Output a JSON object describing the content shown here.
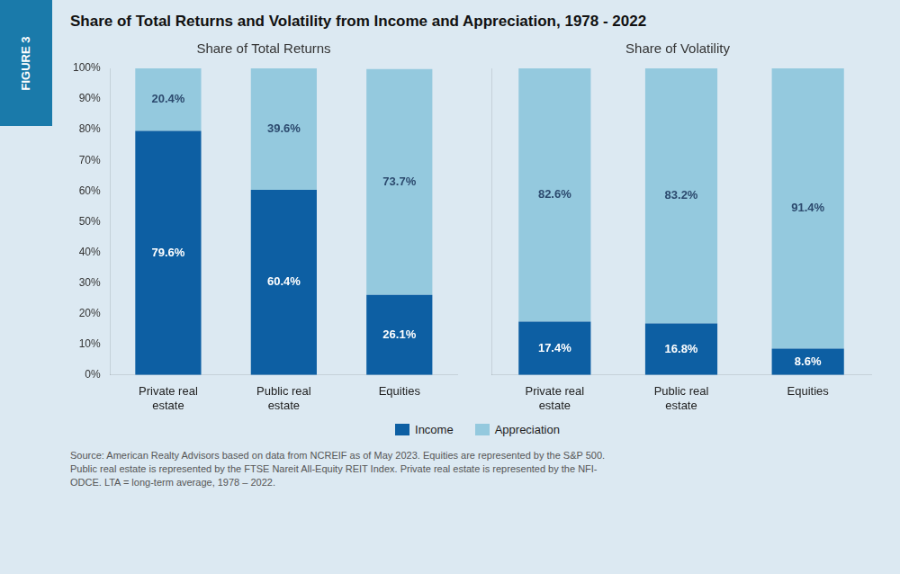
{
  "title": "Share of Total Returns and Volatility from Income and Appreciation, 1978 - 2022",
  "annotations": [
    "FIGURE 3",
    "Source: American Realty Advisors based on data from NCREIF as of May 2023. Equities are represented by the S&P 500.\nPublic real estate is represented by the FTSE Nareit All-Equity REIT Index. Private real estate is represented by the NFI-\nODCE. LTA = long-term average, 1978 – 2022."
  ],
  "chart_data": [
    {
      "type": "bar",
      "subtitle": "Share of Total Returns",
      "stacked": true,
      "categories": [
        "Private real\nestate",
        "Public real\nestate",
        "Equities"
      ],
      "series": [
        {
          "name": "Income",
          "color": "#0d5fa3",
          "values": [
            79.6,
            60.4,
            26.1
          ],
          "value_labels": [
            "79.6%",
            "60.4%",
            "26.1%"
          ]
        },
        {
          "name": "Appreciation",
          "color": "#94c9de",
          "values": [
            20.4,
            39.6,
            73.7
          ],
          "value_labels": [
            "20.4%",
            "39.6%",
            "73.7%"
          ]
        }
      ],
      "ylim": [
        0,
        100
      ],
      "yticks": [
        {
          "value": 0,
          "label": "0%"
        },
        {
          "value": 10,
          "label": "10%"
        },
        {
          "value": 20,
          "label": "20%"
        },
        {
          "value": 30,
          "label": "30%"
        },
        {
          "value": 40,
          "label": "40%"
        },
        {
          "value": 50,
          "label": "50%"
        },
        {
          "value": 60,
          "label": "60%"
        },
        {
          "value": 70,
          "label": "70%"
        },
        {
          "value": 80,
          "label": "80%"
        },
        {
          "value": 90,
          "label": "90%"
        },
        {
          "value": 100,
          "label": "100%"
        }
      ],
      "grid": false,
      "data_labels": true,
      "legend": "bottom"
    },
    {
      "type": "bar",
      "subtitle": "Share of Volatility",
      "stacked": true,
      "categories": [
        "Private real\nestate",
        "Public real\nestate",
        "Equities"
      ],
      "series": [
        {
          "name": "Income",
          "color": "#0d5fa3",
          "values": [
            17.4,
            16.8,
            8.6
          ],
          "value_labels": [
            "17.4%",
            "16.8%",
            "8.6%"
          ]
        },
        {
          "name": "Appreciation",
          "color": "#94c9de",
          "values": [
            82.6,
            83.2,
            91.4
          ],
          "value_labels": [
            "82.6%",
            "83.2%",
            "91.4%"
          ]
        }
      ],
      "ylim": [
        0,
        100
      ],
      "yticks": [
        0,
        10,
        20,
        30,
        40,
        50,
        60,
        70,
        80,
        90,
        100
      ],
      "grid": false,
      "data_labels": true,
      "tick_labels": "x"
    }
  ]
}
